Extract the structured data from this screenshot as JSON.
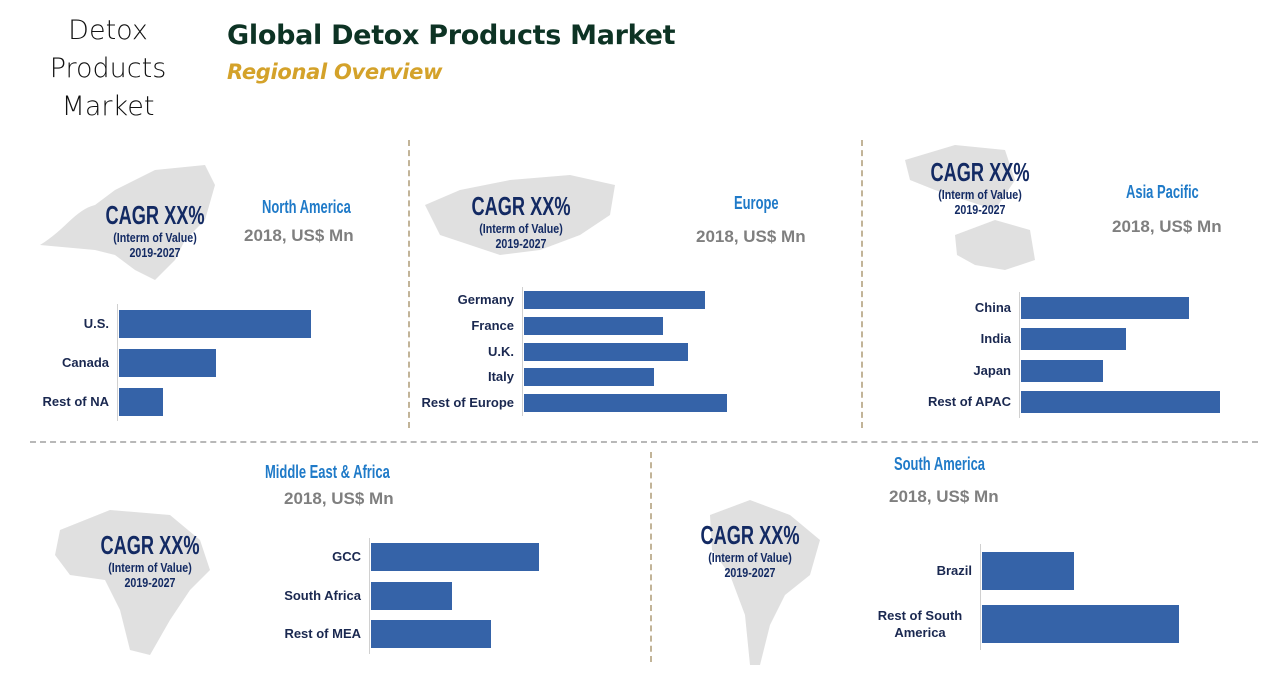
{
  "side_title": [
    "Detox",
    "Products",
    "Market"
  ],
  "title": "Global Detox Products Market",
  "subtitle": "Regional Overview",
  "colors": {
    "bar": "#3563a8",
    "region_title": "#1f7ac8",
    "cagr_text": "#132a63",
    "title": "#0d3324",
    "subtitle": "#d4a22a"
  },
  "cagr": {
    "headline": "CAGR XX%",
    "basis": "(Interm of Value)",
    "period": "2019-2027"
  },
  "unit_label": "2018, US$ Mn",
  "chart_data": [
    {
      "type": "bar",
      "orientation": "horizontal",
      "title": "North America",
      "subtitle": "2018, US$ Mn",
      "categories": [
        "U.S.",
        "Canada",
        "Rest of NA"
      ],
      "values": [
        192,
        97,
        44
      ]
    },
    {
      "type": "bar",
      "orientation": "horizontal",
      "title": "Europe",
      "subtitle": "2018, US$ Mn",
      "categories": [
        "Germany",
        "France",
        "U.K.",
        "Italy",
        "Rest of Europe"
      ],
      "values": [
        181,
        139,
        164,
        130,
        203
      ]
    },
    {
      "type": "bar",
      "orientation": "horizontal",
      "title": "Asia Pacific",
      "subtitle": "2018, US$ Mn",
      "categories": [
        "China",
        "India",
        "Japan",
        "Rest of APAC"
      ],
      "values": [
        168,
        105,
        82,
        199
      ]
    },
    {
      "type": "bar",
      "orientation": "horizontal",
      "title": "Middle East & Africa",
      "subtitle": "2018, US$ Mn",
      "categories": [
        "GCC",
        "South Africa",
        "Rest of MEA"
      ],
      "values": [
        168,
        81,
        120
      ]
    },
    {
      "type": "bar",
      "orientation": "horizontal",
      "title": "South America",
      "subtitle": "2018, US$ Mn",
      "categories": [
        "Brazil",
        "Rest of South America"
      ],
      "values": [
        92,
        197
      ]
    }
  ]
}
